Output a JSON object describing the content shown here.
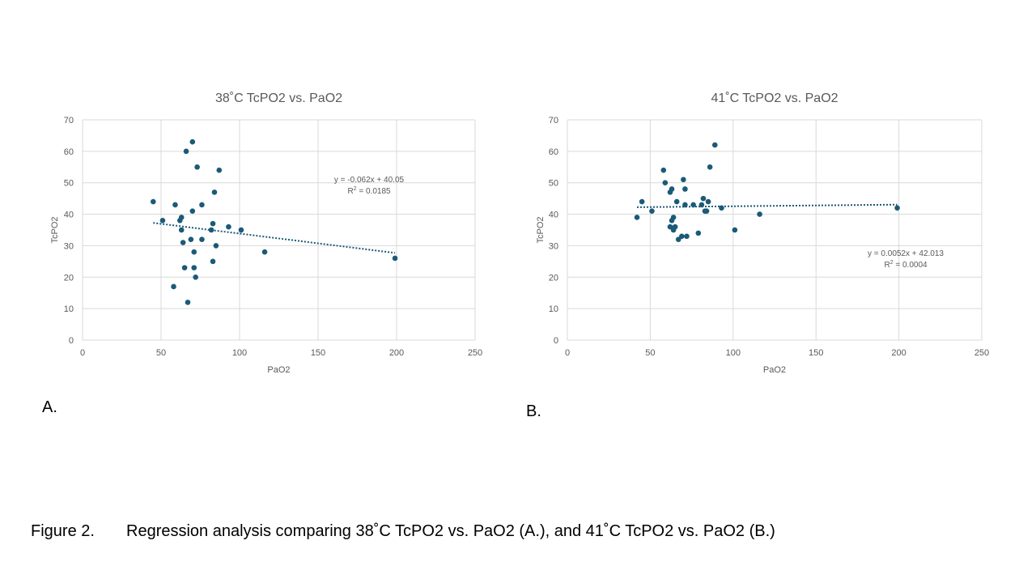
{
  "colors": {
    "marker": "#1b5a78",
    "trendline": "#1b5a78",
    "grid": "#d9d9d9",
    "axis_text": "#595959",
    "title_text": "#595959"
  },
  "panel_labels": {
    "a": "A.",
    "b": "B."
  },
  "caption": {
    "figure_number": "Figure 2.",
    "text": "Regression analysis comparing 38˚C TcPO2 vs. PaO2 (A.), and 41˚C TcPO2 vs. PaO2 (B.)"
  },
  "chart_data": [
    {
      "type": "scatter",
      "title": "38˚C TcPO2 vs. PaO2",
      "xlabel": "PaO2",
      "ylabel": "TcPO2",
      "xlim": [
        0,
        250
      ],
      "ylim": [
        0,
        70
      ],
      "x_ticks": [
        0,
        50,
        100,
        150,
        200,
        250
      ],
      "y_ticks": [
        0,
        10,
        20,
        30,
        40,
        50,
        60,
        70
      ],
      "x_tick_labels": [
        "0",
        "50",
        "100",
        "150",
        "200",
        "250"
      ],
      "y_tick_labels": [
        "0",
        "10",
        "20",
        "30",
        "40",
        "50",
        "60",
        "70"
      ],
      "grid": true,
      "legend": "none",
      "series": [
        {
          "points": [
            [
              45,
              44
            ],
            [
              51,
              38
            ],
            [
              58,
              17
            ],
            [
              59,
              43
            ],
            [
              62,
              38
            ],
            [
              63,
              39
            ],
            [
              63,
              35
            ],
            [
              64,
              31
            ],
            [
              65,
              23
            ],
            [
              66,
              60
            ],
            [
              67,
              12
            ],
            [
              69,
              32
            ],
            [
              70,
              41
            ],
            [
              70,
              63
            ],
            [
              71,
              28
            ],
            [
              71,
              23
            ],
            [
              72,
              20
            ],
            [
              73,
              55
            ],
            [
              76,
              32
            ],
            [
              76,
              43
            ],
            [
              82,
              35
            ],
            [
              83,
              37
            ],
            [
              83,
              25
            ],
            [
              84,
              47
            ],
            [
              85,
              30
            ],
            [
              87,
              54
            ],
            [
              93,
              36
            ],
            [
              101,
              35
            ],
            [
              116,
              28
            ],
            [
              199,
              26
            ]
          ]
        }
      ],
      "trendline": {
        "type": "linear",
        "slope": -0.062,
        "intercept": 40.05,
        "x_range": [
          45,
          199
        ],
        "equation_label": "y = -0.062x + 40.05",
        "r2_prefix": "R",
        "r2_exponent": "2",
        "r2_value": " = 0.0185",
        "label_position": "upper-right"
      }
    },
    {
      "type": "scatter",
      "title": "41˚C TcPO2 vs. PaO2",
      "xlabel": "PaO2",
      "ylabel": "TcPO2",
      "xlim": [
        0,
        250
      ],
      "ylim": [
        0,
        70
      ],
      "x_ticks": [
        0,
        50,
        100,
        150,
        200,
        250
      ],
      "y_ticks": [
        0,
        10,
        20,
        30,
        40,
        50,
        60,
        70
      ],
      "x_tick_labels": [
        "0",
        "50",
        "100",
        "150",
        "200",
        "250"
      ],
      "y_tick_labels": [
        "0",
        "10",
        "20",
        "30",
        "40",
        "50",
        "60",
        "70"
      ],
      "grid": true,
      "legend": "none",
      "series": [
        {
          "points": [
            [
              42,
              39
            ],
            [
              45,
              44
            ],
            [
              51,
              41
            ],
            [
              58,
              54
            ],
            [
              59,
              50
            ],
            [
              62,
              47
            ],
            [
              62,
              36
            ],
            [
              63,
              48
            ],
            [
              63,
              38
            ],
            [
              64,
              39
            ],
            [
              64,
              35
            ],
            [
              65,
              36
            ],
            [
              66,
              44
            ],
            [
              67,
              32
            ],
            [
              69,
              33
            ],
            [
              70,
              51
            ],
            [
              71,
              43
            ],
            [
              71,
              48
            ],
            [
              72,
              33
            ],
            [
              76,
              43
            ],
            [
              79,
              34
            ],
            [
              81,
              43
            ],
            [
              82,
              45
            ],
            [
              83,
              41
            ],
            [
              84,
              41
            ],
            [
              85,
              44
            ],
            [
              86,
              55
            ],
            [
              89,
              62
            ],
            [
              93,
              42
            ],
            [
              101,
              35
            ],
            [
              116,
              40
            ],
            [
              199,
              42
            ]
          ]
        }
      ],
      "trendline": {
        "type": "linear",
        "slope": 0.0052,
        "intercept": 42.013,
        "x_range": [
          42,
          199
        ],
        "equation_label": "y = 0.0052x + 42.013",
        "r2_prefix": "R",
        "r2_exponent": "2",
        "r2_value": " = 0.0004",
        "label_position": "lower-right"
      }
    }
  ]
}
